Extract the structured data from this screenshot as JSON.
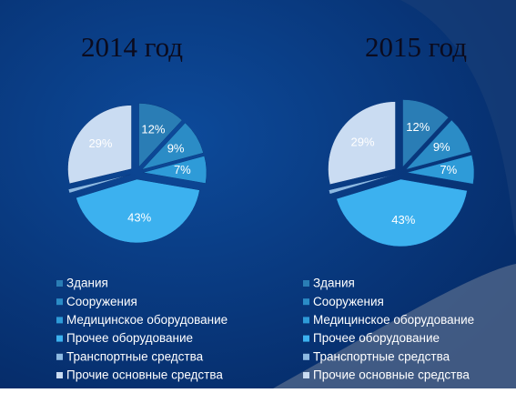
{
  "chart_data": [
    {
      "type": "pie",
      "title": "2014 год",
      "categories": [
        "Здания",
        "Сооружения",
        "Медицинское оборудование",
        "Прочее оборудование",
        "Транспортные средства",
        "Прочие основные средства"
      ],
      "values": [
        12,
        9,
        7,
        43,
        1,
        29
      ],
      "value_labels": [
        "12%",
        "9%",
        "7%",
        "43%",
        null,
        "29%"
      ],
      "colors": [
        "#2a7db5",
        "#2b8cc6",
        "#2e9bd8",
        "#3cb1ef",
        "#8cb9e2",
        "#cadcf2"
      ]
    },
    {
      "type": "pie",
      "title": "2015 год",
      "categories": [
        "Здания",
        "Сооружения",
        "Медицинское оборудование",
        "Прочее оборудование",
        "Транспортные средства",
        "Прочие основные средства"
      ],
      "values": [
        12,
        9,
        7,
        43,
        1,
        29
      ],
      "value_labels": [
        "12%",
        "9%",
        "7%",
        "43%",
        null,
        "29%"
      ],
      "colors": [
        "#2a7db5",
        "#2b8cc6",
        "#2e9bd8",
        "#3cb1ef",
        "#8cb9e2",
        "#cadcf2"
      ]
    }
  ]
}
